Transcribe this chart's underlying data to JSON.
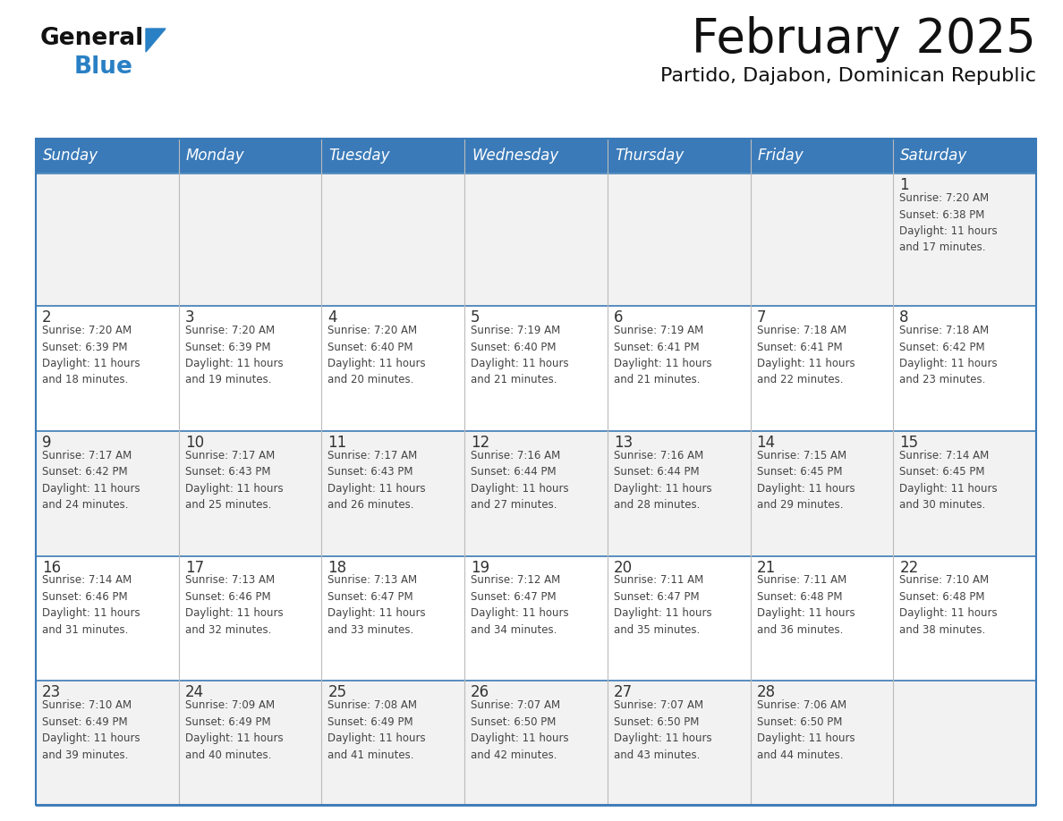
{
  "title": "February 2025",
  "subtitle": "Partido, Dajabon, Dominican Republic",
  "days_of_week": [
    "Sunday",
    "Monday",
    "Tuesday",
    "Wednesday",
    "Thursday",
    "Friday",
    "Saturday"
  ],
  "header_bg": "#3A7AB8",
  "header_text": "#FFFFFF",
  "cell_bg_white": "#FFFFFF",
  "cell_bg_gray": "#F2F2F2",
  "divider_color": "#3A7AB8",
  "row_border_color": "#5A8FC0",
  "day_number_color": "#333333",
  "cell_text_color": "#444444",
  "title_color": "#111111",
  "subtitle_color": "#111111",
  "calendar_data": [
    [
      {
        "day": null,
        "info": null
      },
      {
        "day": null,
        "info": null
      },
      {
        "day": null,
        "info": null
      },
      {
        "day": null,
        "info": null
      },
      {
        "day": null,
        "info": null
      },
      {
        "day": null,
        "info": null
      },
      {
        "day": 1,
        "info": "Sunrise: 7:20 AM\nSunset: 6:38 PM\nDaylight: 11 hours\nand 17 minutes."
      }
    ],
    [
      {
        "day": 2,
        "info": "Sunrise: 7:20 AM\nSunset: 6:39 PM\nDaylight: 11 hours\nand 18 minutes."
      },
      {
        "day": 3,
        "info": "Sunrise: 7:20 AM\nSunset: 6:39 PM\nDaylight: 11 hours\nand 19 minutes."
      },
      {
        "day": 4,
        "info": "Sunrise: 7:20 AM\nSunset: 6:40 PM\nDaylight: 11 hours\nand 20 minutes."
      },
      {
        "day": 5,
        "info": "Sunrise: 7:19 AM\nSunset: 6:40 PM\nDaylight: 11 hours\nand 21 minutes."
      },
      {
        "day": 6,
        "info": "Sunrise: 7:19 AM\nSunset: 6:41 PM\nDaylight: 11 hours\nand 21 minutes."
      },
      {
        "day": 7,
        "info": "Sunrise: 7:18 AM\nSunset: 6:41 PM\nDaylight: 11 hours\nand 22 minutes."
      },
      {
        "day": 8,
        "info": "Sunrise: 7:18 AM\nSunset: 6:42 PM\nDaylight: 11 hours\nand 23 minutes."
      }
    ],
    [
      {
        "day": 9,
        "info": "Sunrise: 7:17 AM\nSunset: 6:42 PM\nDaylight: 11 hours\nand 24 minutes."
      },
      {
        "day": 10,
        "info": "Sunrise: 7:17 AM\nSunset: 6:43 PM\nDaylight: 11 hours\nand 25 minutes."
      },
      {
        "day": 11,
        "info": "Sunrise: 7:17 AM\nSunset: 6:43 PM\nDaylight: 11 hours\nand 26 minutes."
      },
      {
        "day": 12,
        "info": "Sunrise: 7:16 AM\nSunset: 6:44 PM\nDaylight: 11 hours\nand 27 minutes."
      },
      {
        "day": 13,
        "info": "Sunrise: 7:16 AM\nSunset: 6:44 PM\nDaylight: 11 hours\nand 28 minutes."
      },
      {
        "day": 14,
        "info": "Sunrise: 7:15 AM\nSunset: 6:45 PM\nDaylight: 11 hours\nand 29 minutes."
      },
      {
        "day": 15,
        "info": "Sunrise: 7:14 AM\nSunset: 6:45 PM\nDaylight: 11 hours\nand 30 minutes."
      }
    ],
    [
      {
        "day": 16,
        "info": "Sunrise: 7:14 AM\nSunset: 6:46 PM\nDaylight: 11 hours\nand 31 minutes."
      },
      {
        "day": 17,
        "info": "Sunrise: 7:13 AM\nSunset: 6:46 PM\nDaylight: 11 hours\nand 32 minutes."
      },
      {
        "day": 18,
        "info": "Sunrise: 7:13 AM\nSunset: 6:47 PM\nDaylight: 11 hours\nand 33 minutes."
      },
      {
        "day": 19,
        "info": "Sunrise: 7:12 AM\nSunset: 6:47 PM\nDaylight: 11 hours\nand 34 minutes."
      },
      {
        "day": 20,
        "info": "Sunrise: 7:11 AM\nSunset: 6:47 PM\nDaylight: 11 hours\nand 35 minutes."
      },
      {
        "day": 21,
        "info": "Sunrise: 7:11 AM\nSunset: 6:48 PM\nDaylight: 11 hours\nand 36 minutes."
      },
      {
        "day": 22,
        "info": "Sunrise: 7:10 AM\nSunset: 6:48 PM\nDaylight: 11 hours\nand 38 minutes."
      }
    ],
    [
      {
        "day": 23,
        "info": "Sunrise: 7:10 AM\nSunset: 6:49 PM\nDaylight: 11 hours\nand 39 minutes."
      },
      {
        "day": 24,
        "info": "Sunrise: 7:09 AM\nSunset: 6:49 PM\nDaylight: 11 hours\nand 40 minutes."
      },
      {
        "day": 25,
        "info": "Sunrise: 7:08 AM\nSunset: 6:49 PM\nDaylight: 11 hours\nand 41 minutes."
      },
      {
        "day": 26,
        "info": "Sunrise: 7:07 AM\nSunset: 6:50 PM\nDaylight: 11 hours\nand 42 minutes."
      },
      {
        "day": 27,
        "info": "Sunrise: 7:07 AM\nSunset: 6:50 PM\nDaylight: 11 hours\nand 43 minutes."
      },
      {
        "day": 28,
        "info": "Sunrise: 7:06 AM\nSunset: 6:50 PM\nDaylight: 11 hours\nand 44 minutes."
      },
      {
        "day": null,
        "info": null
      }
    ]
  ],
  "logo_text_general": "General",
  "logo_text_blue": "Blue",
  "logo_black_color": "#111111",
  "logo_blue_color": "#2980C4"
}
